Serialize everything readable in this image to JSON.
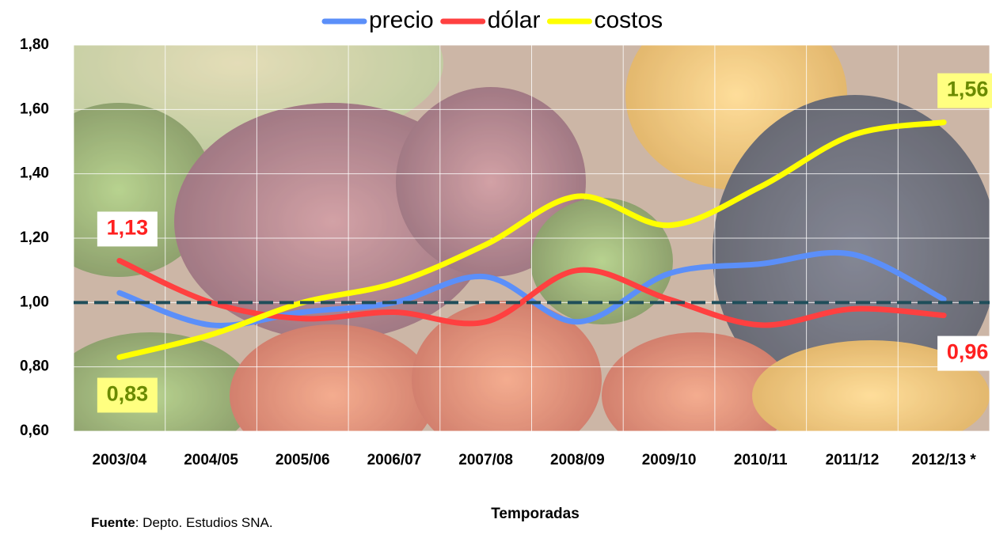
{
  "chart_data": {
    "type": "line",
    "categories": [
      "2003/04",
      "2004/05",
      "2005/06",
      "2006/07",
      "2007/08",
      "2008/09",
      "2009/10",
      "2010/11",
      "2011/12",
      "2012/13 *"
    ],
    "series": [
      {
        "name": "precio",
        "color": "#5b8ff9",
        "values": [
          1.03,
          0.93,
          0.97,
          1.0,
          1.08,
          0.94,
          1.09,
          1.12,
          1.15,
          1.01
        ]
      },
      {
        "name": "dólar",
        "color": "#ff4040",
        "values": [
          1.13,
          1.0,
          0.95,
          0.97,
          0.94,
          1.1,
          1.01,
          0.93,
          0.98,
          0.96
        ],
        "value_labels": [
          "1,13",
          null,
          null,
          null,
          null,
          null,
          null,
          null,
          null,
          "0,96"
        ]
      },
      {
        "name": "costos",
        "color": "#ffff00",
        "values": [
          0.83,
          0.9,
          1.0,
          1.06,
          1.18,
          1.33,
          1.24,
          1.36,
          1.52,
          1.56
        ],
        "value_labels": [
          "0,83",
          null,
          null,
          null,
          null,
          null,
          null,
          null,
          null,
          "1,56"
        ]
      }
    ],
    "ylim": [
      0.6,
      1.8
    ],
    "yticks": [
      {
        "value": 0.6,
        "label": "0,60"
      },
      {
        "value": 0.8,
        "label": "0,80"
      },
      {
        "value": 1.0,
        "label": "1,00"
      },
      {
        "value": 1.2,
        "label": "1,20"
      },
      {
        "value": 1.4,
        "label": "1,40"
      },
      {
        "value": 1.6,
        "label": "1,60"
      },
      {
        "value": 1.8,
        "label": "1,80"
      }
    ],
    "reference_line": 1.0,
    "grid": true,
    "legend": "top",
    "x_label": "Temporadas",
    "source_label": "Fuente",
    "source_text": ": Depto. Estudios SNA."
  }
}
